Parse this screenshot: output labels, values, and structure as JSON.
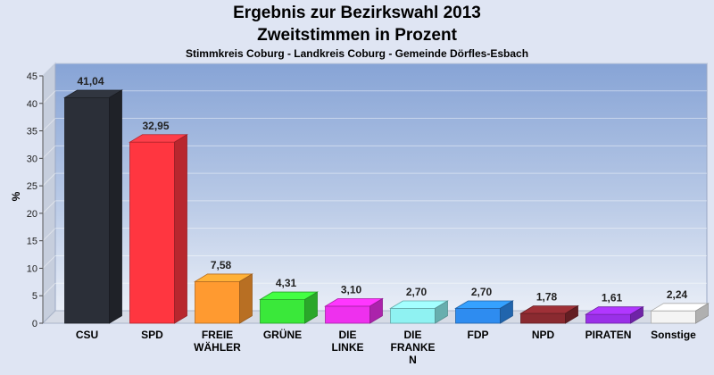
{
  "chart_data": {
    "type": "bar",
    "title": "Ergebnis zur Bezirkswahl 2013",
    "title2": "Zweitstimmen in Prozent",
    "subtitle": "Stimmkreis Coburg - Landkreis Coburg - Gemeinde Dörfles-Esbach",
    "ylabel": "%",
    "ylim": [
      0,
      45
    ],
    "yticks": [
      0,
      5,
      10,
      15,
      20,
      25,
      30,
      35,
      40,
      45
    ],
    "grid": true,
    "categories": [
      [
        "CSU"
      ],
      [
        "SPD"
      ],
      [
        "FREIE",
        "WÄHLER"
      ],
      [
        "GRÜNE"
      ],
      [
        "DIE",
        "LINKE"
      ],
      [
        "DIE",
        "FRANKE",
        "N"
      ],
      [
        "FDP"
      ],
      [
        "NPD"
      ],
      [
        "PIRATEN"
      ],
      [
        "Sonstige"
      ]
    ],
    "values": [
      41.04,
      32.95,
      7.58,
      4.31,
      3.1,
      2.7,
      2.7,
      1.78,
      1.61,
      2.24
    ],
    "labels": [
      "41,04",
      "32,95",
      "7,58",
      "4,31",
      "3,10",
      "2,70",
      "2,70",
      "1,78",
      "1,61",
      "2,24"
    ],
    "colors": [
      "#2b2f38",
      "#ff3640",
      "#ff9a30",
      "#3ae83a",
      "#ee30ee",
      "#8ff2f2",
      "#2e8cf0",
      "#8a2a30",
      "#9a30e8",
      "#f4f4f4"
    ]
  }
}
